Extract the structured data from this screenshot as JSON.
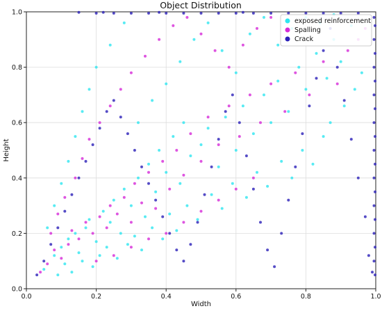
{
  "chart_data": {
    "type": "scatter",
    "title": "Object Distribution",
    "xlabel": "Width",
    "ylabel": "Height",
    "xlim": [
      0.0,
      1.0
    ],
    "ylim": [
      0.0,
      1.0
    ],
    "xticks": [
      "0.0",
      "0.2",
      "0.4",
      "0.6",
      "0.8",
      "1.0"
    ],
    "yticks": [
      "0.0",
      "0.2",
      "0.4",
      "0.6",
      "0.8",
      "1.0"
    ],
    "grid": true,
    "legend_position": "top-right",
    "series": [
      {
        "name": "exposed reinforcement",
        "color": "#2ee6f0",
        "values": [
          [
            0.05,
            0.07
          ],
          [
            0.08,
            0.12
          ],
          [
            0.1,
            0.15
          ],
          [
            0.12,
            0.18
          ],
          [
            0.14,
            0.2
          ],
          [
            0.15,
            0.13
          ],
          [
            0.17,
            0.22
          ],
          [
            0.18,
            0.25
          ],
          [
            0.2,
            0.17
          ],
          [
            0.22,
            0.28
          ],
          [
            0.24,
            0.24
          ],
          [
            0.25,
            0.32
          ],
          [
            0.27,
            0.2
          ],
          [
            0.28,
            0.36
          ],
          [
            0.3,
            0.3
          ],
          [
            0.32,
            0.4
          ],
          [
            0.34,
            0.26
          ],
          [
            0.35,
            0.45
          ],
          [
            0.37,
            0.35
          ],
          [
            0.38,
            0.5
          ],
          [
            0.4,
            0.42
          ],
          [
            0.42,
            0.55
          ],
          [
            0.44,
            0.38
          ],
          [
            0.45,
            0.6
          ],
          [
            0.47,
            0.48
          ],
          [
            0.5,
            0.52
          ],
          [
            0.52,
            0.58
          ],
          [
            0.55,
            0.44
          ],
          [
            0.57,
            0.62
          ],
          [
            0.6,
            0.5
          ],
          [
            0.62,
            0.66
          ],
          [
            0.65,
            0.56
          ],
          [
            0.68,
            0.7
          ],
          [
            0.7,
            0.6
          ],
          [
            0.72,
            0.75
          ],
          [
            0.75,
            0.64
          ],
          [
            0.78,
            0.8
          ],
          [
            0.8,
            0.72
          ],
          [
            0.83,
            0.85
          ],
          [
            0.86,
            0.76
          ],
          [
            0.88,
            0.9
          ],
          [
            0.9,
            0.82
          ],
          [
            0.93,
            0.95
          ],
          [
            0.09,
            0.05
          ],
          [
            0.11,
            0.09
          ],
          [
            0.13,
            0.06
          ],
          [
            0.16,
            0.1
          ],
          [
            0.19,
            0.08
          ],
          [
            0.21,
            0.12
          ],
          [
            0.23,
            0.15
          ],
          [
            0.26,
            0.11
          ],
          [
            0.29,
            0.16
          ],
          [
            0.31,
            0.19
          ],
          [
            0.33,
            0.14
          ],
          [
            0.36,
            0.22
          ],
          [
            0.39,
            0.18
          ],
          [
            0.41,
            0.27
          ],
          [
            0.43,
            0.21
          ],
          [
            0.46,
            0.3
          ],
          [
            0.49,
            0.25
          ],
          [
            0.53,
            0.34
          ],
          [
            0.56,
            0.29
          ],
          [
            0.59,
            0.38
          ],
          [
            0.63,
            0.33
          ],
          [
            0.66,
            0.42
          ],
          [
            0.69,
            0.37
          ],
          [
            0.73,
            0.46
          ],
          [
            0.76,
            0.4
          ],
          [
            0.79,
            0.5
          ],
          [
            0.82,
            0.45
          ],
          [
            0.85,
            0.55
          ],
          [
            0.87,
            0.6
          ],
          [
            0.91,
            0.66
          ],
          [
            0.94,
            0.72
          ],
          [
            0.96,
            0.78
          ],
          [
            0.06,
            0.22
          ],
          [
            0.08,
            0.3
          ],
          [
            0.1,
            0.38
          ],
          [
            0.12,
            0.46
          ],
          [
            0.14,
            0.55
          ],
          [
            0.16,
            0.64
          ],
          [
            0.18,
            0.72
          ],
          [
            0.2,
            0.8
          ],
          [
            0.24,
            0.88
          ],
          [
            0.28,
            0.96
          ],
          [
            0.32,
            0.6
          ],
          [
            0.36,
            0.68
          ],
          [
            0.4,
            0.74
          ],
          [
            0.44,
            0.82
          ],
          [
            0.48,
            0.9
          ],
          [
            0.52,
            0.96
          ],
          [
            0.56,
            0.86
          ],
          [
            0.6,
            0.78
          ],
          [
            0.64,
            0.92
          ],
          [
            0.68,
            0.98
          ],
          [
            0.72,
            0.88
          ],
          [
            0.76,
            0.94
          ],
          [
            0.8,
            0.98
          ],
          [
            0.84,
            0.96
          ],
          [
            0.88,
            0.99
          ]
        ]
      },
      {
        "name": "Spalling",
        "color": "#d62ad8",
        "values": [
          [
            0.04,
            0.06
          ],
          [
            0.06,
            0.09
          ],
          [
            0.08,
            0.14
          ],
          [
            0.1,
            0.11
          ],
          [
            0.12,
            0.16
          ],
          [
            0.13,
            0.21
          ],
          [
            0.15,
            0.18
          ],
          [
            0.17,
            0.24
          ],
          [
            0.19,
            0.2
          ],
          [
            0.21,
            0.26
          ],
          [
            0.23,
            0.22
          ],
          [
            0.24,
            0.3
          ],
          [
            0.26,
            0.27
          ],
          [
            0.28,
            0.33
          ],
          [
            0.3,
            0.24
          ],
          [
            0.31,
            0.38
          ],
          [
            0.33,
            0.31
          ],
          [
            0.35,
            0.42
          ],
          [
            0.37,
            0.29
          ],
          [
            0.39,
            0.46
          ],
          [
            0.41,
            0.36
          ],
          [
            0.43,
            0.5
          ],
          [
            0.45,
            0.41
          ],
          [
            0.47,
            0.56
          ],
          [
            0.5,
            0.46
          ],
          [
            0.52,
            0.62
          ],
          [
            0.55,
            0.52
          ],
          [
            0.58,
            0.66
          ],
          [
            0.61,
            0.55
          ],
          [
            0.64,
            0.7
          ],
          [
            0.67,
            0.6
          ],
          [
            0.7,
            0.74
          ],
          [
            0.74,
            0.64
          ],
          [
            0.77,
            0.78
          ],
          [
            0.81,
            0.7
          ],
          [
            0.85,
            0.82
          ],
          [
            0.89,
            0.74
          ],
          [
            0.92,
            0.86
          ],
          [
            0.95,
            0.9
          ],
          [
            0.97,
            0.94
          ],
          [
            0.07,
            0.2
          ],
          [
            0.09,
            0.27
          ],
          [
            0.11,
            0.33
          ],
          [
            0.14,
            0.4
          ],
          [
            0.16,
            0.47
          ],
          [
            0.18,
            0.54
          ],
          [
            0.21,
            0.6
          ],
          [
            0.24,
            0.66
          ],
          [
            0.27,
            0.72
          ],
          [
            0.3,
            0.78
          ],
          [
            0.34,
            0.84
          ],
          [
            0.38,
            0.9
          ],
          [
            0.42,
            0.95
          ],
          [
            0.46,
            0.98
          ],
          [
            0.5,
            0.92
          ],
          [
            0.54,
            0.86
          ],
          [
            0.58,
            0.8
          ],
          [
            0.62,
            0.88
          ],
          [
            0.66,
            0.94
          ],
          [
            0.7,
            0.98
          ],
          [
            0.2,
            0.1
          ],
          [
            0.25,
            0.12
          ],
          [
            0.3,
            0.15
          ],
          [
            0.35,
            0.18
          ],
          [
            0.4,
            0.2
          ],
          [
            0.45,
            0.24
          ],
          [
            0.5,
            0.28
          ],
          [
            0.55,
            0.32
          ],
          [
            0.6,
            0.36
          ],
          [
            0.65,
            0.4
          ]
        ]
      },
      {
        "name": "Crack",
        "color": "#2a1fb8",
        "values": [
          [
            0.03,
            0.05
          ],
          [
            0.05,
            0.1
          ],
          [
            0.07,
            0.16
          ],
          [
            0.09,
            0.22
          ],
          [
            0.11,
            0.28
          ],
          [
            0.13,
            0.34
          ],
          [
            0.15,
            0.4
          ],
          [
            0.17,
            0.46
          ],
          [
            0.19,
            0.52
          ],
          [
            0.21,
            0.58
          ],
          [
            0.23,
            0.64
          ],
          [
            0.25,
            0.68
          ],
          [
            0.27,
            0.62
          ],
          [
            0.29,
            0.56
          ],
          [
            0.31,
            0.5
          ],
          [
            0.33,
            0.44
          ],
          [
            0.35,
            0.38
          ],
          [
            0.37,
            0.32
          ],
          [
            0.39,
            0.26
          ],
          [
            0.41,
            0.2
          ],
          [
            0.43,
            0.14
          ],
          [
            0.45,
            0.1
          ],
          [
            0.47,
            0.16
          ],
          [
            0.49,
            0.24
          ],
          [
            0.51,
            0.34
          ],
          [
            0.53,
            0.44
          ],
          [
            0.55,
            0.54
          ],
          [
            0.57,
            0.64
          ],
          [
            0.59,
            0.7
          ],
          [
            0.61,
            0.6
          ],
          [
            0.63,
            0.48
          ],
          [
            0.65,
            0.36
          ],
          [
            0.67,
            0.24
          ],
          [
            0.69,
            0.14
          ],
          [
            0.71,
            0.08
          ],
          [
            0.73,
            0.2
          ],
          [
            0.75,
            0.32
          ],
          [
            0.77,
            0.44
          ],
          [
            0.79,
            0.56
          ],
          [
            0.81,
            0.66
          ],
          [
            0.83,
            0.76
          ],
          [
            0.85,
            0.86
          ],
          [
            0.87,
            0.94
          ],
          [
            0.89,
            0.8
          ],
          [
            0.91,
            0.68
          ],
          [
            0.93,
            0.54
          ],
          [
            0.95,
            0.4
          ],
          [
            0.97,
            0.26
          ],
          [
            0.98,
            0.12
          ],
          [
            0.99,
            0.06
          ],
          [
            0.995,
            0.1
          ],
          [
            0.995,
            0.2
          ],
          [
            0.995,
            0.3
          ],
          [
            0.995,
            0.4
          ],
          [
            0.995,
            0.5
          ],
          [
            0.995,
            0.6
          ],
          [
            0.995,
            0.7
          ],
          [
            0.995,
            0.8
          ],
          [
            0.995,
            0.9
          ],
          [
            0.995,
            0.98
          ],
          [
            0.998,
            0.05
          ],
          [
            0.998,
            0.15
          ],
          [
            0.998,
            0.25
          ],
          [
            0.998,
            0.35
          ],
          [
            0.998,
            0.45
          ],
          [
            0.998,
            0.55
          ],
          [
            0.998,
            0.65
          ],
          [
            0.998,
            0.75
          ],
          [
            0.998,
            0.85
          ],
          [
            0.998,
            0.95
          ],
          [
            0.2,
            0.995
          ],
          [
            0.25,
            0.995
          ],
          [
            0.3,
            0.995
          ],
          [
            0.35,
            0.995
          ],
          [
            0.4,
            0.995
          ],
          [
            0.45,
            0.995
          ],
          [
            0.5,
            0.995
          ],
          [
            0.55,
            0.995
          ],
          [
            0.6,
            0.995
          ],
          [
            0.65,
            0.995
          ],
          [
            0.7,
            0.995
          ],
          [
            0.75,
            0.995
          ],
          [
            0.8,
            0.995
          ],
          [
            0.85,
            0.995
          ],
          [
            0.9,
            0.995
          ],
          [
            0.95,
            0.995
          ],
          [
            0.15,
            0.998
          ],
          [
            0.22,
            0.998
          ],
          [
            0.38,
            0.998
          ],
          [
            0.62,
            0.998
          ]
        ]
      }
    ]
  }
}
